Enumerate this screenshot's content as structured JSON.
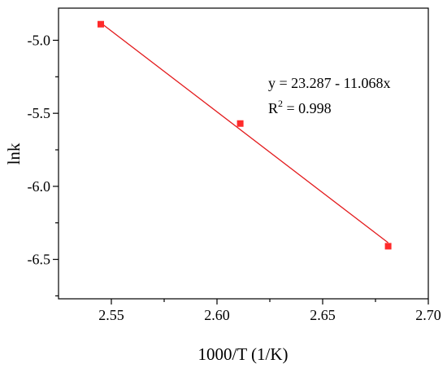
{
  "chart_data": {
    "type": "scatter",
    "xlabel": "1000/T (1/K)",
    "ylabel": "lnk",
    "xlim": [
      2.525,
      2.7
    ],
    "ylim": [
      -6.77,
      -4.78
    ],
    "xticks": [
      2.55,
      2.6,
      2.65,
      2.7
    ],
    "xtick_labels": [
      "2.55",
      "2.60",
      "2.65",
      "2.70"
    ],
    "yticks": [
      -5.0,
      -5.5,
      -6.0,
      -6.5
    ],
    "ytick_labels": [
      "-5.0",
      "-5.5",
      "-6.0",
      "-6.5"
    ],
    "grid": false,
    "series": [
      {
        "x": [
          2.545,
          2.611,
          2.681
        ],
        "y": [
          -4.89,
          -5.57,
          -6.41
        ],
        "marker": "square",
        "color": "#ff2a2a"
      }
    ],
    "fit_line": {
      "x": [
        2.545,
        2.681
      ],
      "intercept": 23.287,
      "slope": -11.068,
      "color": "#e31a1c"
    },
    "annotation": {
      "equation": "y = 23.287 - 11.068x",
      "r2_prefix": "R",
      "r2_sup": "2",
      "r2_value": " = 0.998"
    }
  }
}
